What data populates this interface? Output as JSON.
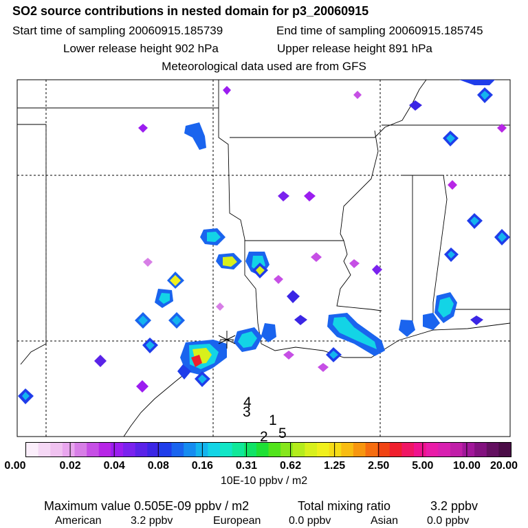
{
  "header": {
    "title": "SO2 source contributions in nested domain for p3_20060915",
    "start_label": "Start time of sampling 20060915.185739",
    "end_label": "End time of sampling 20060915.185745",
    "lower_label": "Lower release height  902 hPa",
    "upper_label": "Upper release height  891 hPa",
    "met_label": "Meteorological data used are from GFS"
  },
  "map": {
    "source_numbers": [
      "4",
      "3",
      "1",
      "2",
      "5"
    ]
  },
  "colorbar": {
    "ticks": [
      "0.00",
      "0.02",
      "0.04",
      "0.08",
      "0.16",
      "0.31",
      "0.62",
      "1.25",
      "2.50",
      "5.00",
      "10.00",
      "20.00"
    ],
    "units": "10E-10 ppbv / m2",
    "colors": [
      "#fbeefb",
      "#f5d8f5",
      "#f0c2f0",
      "#e9a6ee",
      "#d77ee6",
      "#c64fe5",
      "#b726e6",
      "#9b1df0",
      "#7a22ee",
      "#5a23e8",
      "#3b26e5",
      "#1f3dea",
      "#1a64ee",
      "#168cf0",
      "#14b4ee",
      "#13d4e6",
      "#12e6c6",
      "#10e899",
      "#10e366",
      "#1ee035",
      "#52e31c",
      "#86e61c",
      "#b4ec1c",
      "#d8f01c",
      "#f0f01c",
      "#f6dc16",
      "#f8bc12",
      "#f7960f",
      "#f56d10",
      "#f04414",
      "#ef1f2e",
      "#ef1664",
      "#ef128e",
      "#e91ca8",
      "#d820b0",
      "#c01ea8",
      "#a1179a",
      "#82127f",
      "#631060",
      "#4a0c46"
    ]
  },
  "summary": {
    "max_label": "Maximum value  0.505E-09 ppbv / m2",
    "total_label": "Total mixing ratio",
    "total_value": "3.2 ppbv",
    "american_label": "American",
    "american_value": "3.2 ppbv",
    "european_label": "European",
    "european_value": "0.0 ppbv",
    "asian_label": "Asian",
    "asian_value": "0.0 ppbv"
  }
}
